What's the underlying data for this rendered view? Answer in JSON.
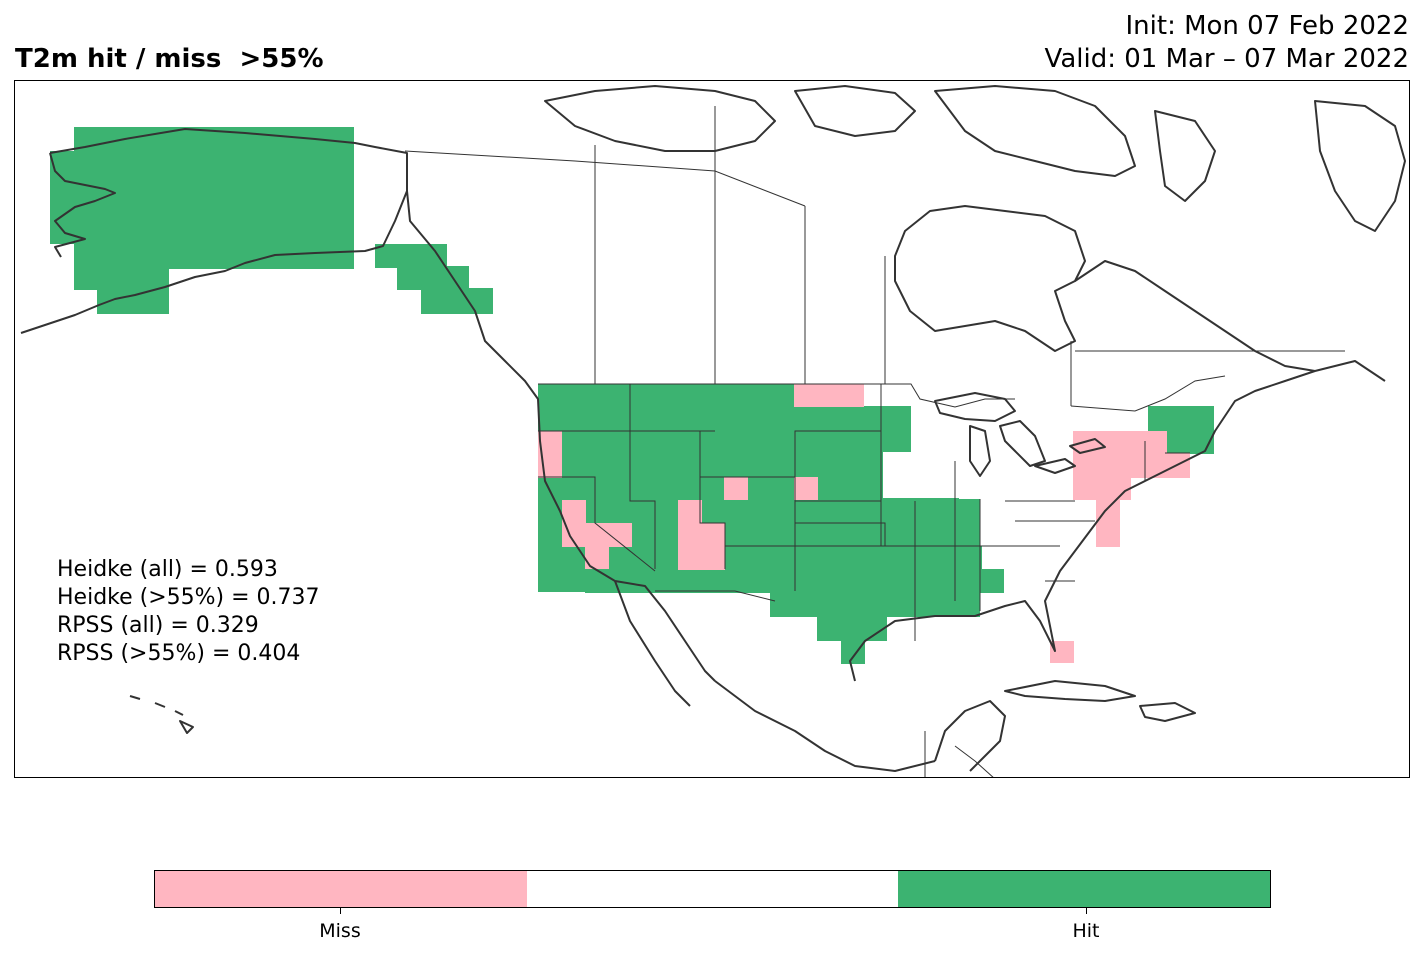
{
  "title": {
    "left": "T2m hit / miss  >55%",
    "init": "Init: Mon 07 Feb 2022",
    "valid": "Valid: 01 Mar – 07 Mar 2022"
  },
  "stats": [
    "Heidke (all) = 0.593",
    "Heidke (>55%) = 0.737",
    "RPSS (all) = 0.329",
    "RPSS (>55%) = 0.404"
  ],
  "colors": {
    "miss": "#ffb6c1",
    "neutral": "#ffffff",
    "hit": "#3cb371",
    "coast": "#333333"
  },
  "colorbar": {
    "labels": [
      "Miss",
      "Hit"
    ]
  }
}
